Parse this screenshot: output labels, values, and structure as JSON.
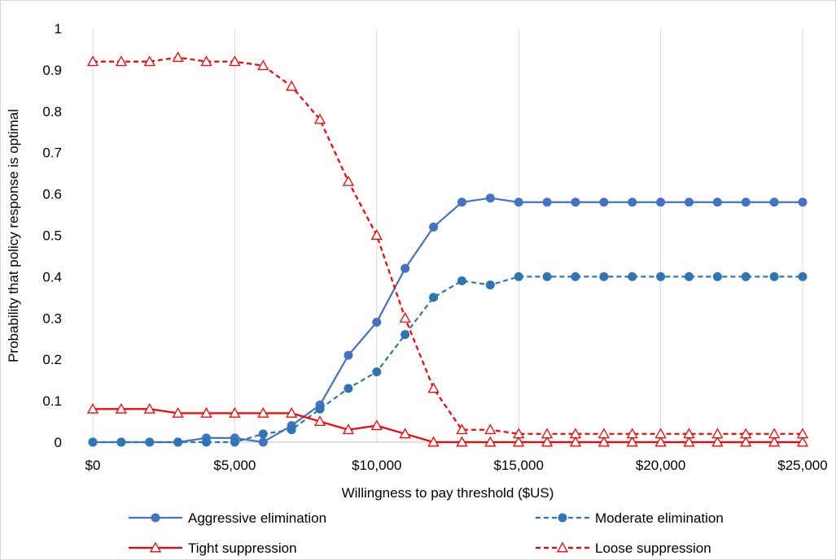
{
  "chart_data": {
    "type": "line",
    "title": "",
    "xlabel": "Willingness to pay threshold ($US)",
    "ylabel": "Probability that policy response is optimal",
    "xlim": [
      0,
      25000
    ],
    "ylim": [
      0,
      1
    ],
    "x_ticks": [
      0,
      5000,
      10000,
      15000,
      20000,
      25000
    ],
    "x_tick_labels": [
      "$0",
      "$5,000",
      "$10,000",
      "$15,000",
      "$20,000",
      "$25,000"
    ],
    "y_ticks": [
      0,
      0.1,
      0.2,
      0.3,
      0.4,
      0.5,
      0.6,
      0.7,
      0.8,
      0.9,
      1
    ],
    "y_tick_labels": [
      "0",
      "0.1",
      "0.2",
      "0.3",
      "0.4",
      "0.5",
      "0.6",
      "0.7",
      "0.8",
      "0.9",
      "1"
    ],
    "grid": "vertical",
    "legend_position": "bottom",
    "x": [
      0,
      1000,
      2000,
      3000,
      4000,
      5000,
      6000,
      7000,
      8000,
      9000,
      10000,
      11000,
      12000,
      13000,
      14000,
      15000,
      16000,
      17000,
      18000,
      19000,
      20000,
      21000,
      22000,
      23000,
      24000,
      25000
    ],
    "series": [
      {
        "name": "Aggressive elimination",
        "color": "#4472c4",
        "line_style": "solid",
        "marker": "circle",
        "values": [
          0,
          0,
          0,
          0,
          0.01,
          0.01,
          0,
          0.04,
          0.09,
          0.21,
          0.29,
          0.42,
          0.52,
          0.58,
          0.59,
          0.58,
          0.58,
          0.58,
          0.58,
          0.58,
          0.58,
          0.58,
          0.58,
          0.58,
          0.58,
          0.58
        ]
      },
      {
        "name": "Moderate elimination",
        "color": "#2e75b6",
        "line_style": "dashed",
        "marker": "circle",
        "values": [
          0,
          0,
          0,
          0,
          0,
          0,
          0.02,
          0.03,
          0.08,
          0.13,
          0.17,
          0.26,
          0.35,
          0.39,
          0.38,
          0.4,
          0.4,
          0.4,
          0.4,
          0.4,
          0.4,
          0.4,
          0.4,
          0.4,
          0.4,
          0.4
        ]
      },
      {
        "name": "Tight suppression",
        "color": "#ff0000",
        "line_style": "solid",
        "marker": "triangle",
        "values": [
          0.08,
          0.08,
          0.08,
          0.07,
          0.07,
          0.07,
          0.07,
          0.07,
          0.05,
          0.03,
          0.04,
          0.02,
          0,
          0,
          0,
          0,
          0,
          0,
          0,
          0,
          0,
          0,
          0,
          0,
          0,
          0
        ]
      },
      {
        "name": "Loose suppression",
        "color": "#ff0000",
        "line_style": "dashed",
        "marker": "triangle",
        "values": [
          0.92,
          0.92,
          0.92,
          0.93,
          0.92,
          0.92,
          0.91,
          0.86,
          0.78,
          0.63,
          0.5,
          0.3,
          0.13,
          0.03,
          0.03,
          0.02,
          0.02,
          0.02,
          0.02,
          0.02,
          0.02,
          0.02,
          0.02,
          0.02,
          0.02,
          0.02
        ]
      }
    ]
  }
}
